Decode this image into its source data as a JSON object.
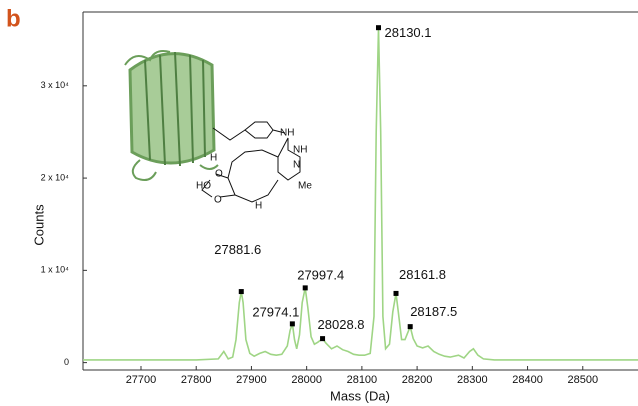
{
  "chart_data": {
    "type": "line",
    "panel_label": "b",
    "xlabel": "Mass (Da)",
    "ylabel": "Counts",
    "xlim": [
      27595,
      28600
    ],
    "ylim": [
      -800,
      38000
    ],
    "xticks": [
      27700,
      27800,
      27900,
      28000,
      28100,
      28200,
      28300,
      28400,
      28500
    ],
    "yticks": [
      0,
      {
        "value": 10000,
        "label": "1 x 10⁴"
      },
      {
        "value": 20000,
        "label": "2 x 10⁴"
      },
      {
        "value": 30000,
        "label": "3 x 10⁴"
      }
    ],
    "color": "#9fd585",
    "x": [
      27595,
      27700,
      27800,
      27840,
      27850,
      27858,
      27866,
      27872,
      27878,
      27881.6,
      27885,
      27890,
      27897,
      27905,
      27915,
      27925,
      27935,
      27945,
      27955,
      27965,
      27970,
      27974.1,
      27978,
      27982,
      27987,
      27992,
      27997.4,
      28002,
      28008,
      28014,
      28020,
      28028.8,
      28035,
      28045,
      28055,
      28065,
      28075,
      28085,
      28095,
      28105,
      28115,
      28122,
      28126,
      28130.1,
      28134,
      28138,
      28143,
      28150,
      28156,
      28161.8,
      28166,
      28172,
      28178,
      28187.5,
      28193,
      28200,
      28210,
      28220,
      28230,
      28240,
      28250,
      28260,
      28275,
      28285,
      28295,
      28302,
      28310,
      28320,
      28340,
      28400,
      28500,
      28600
    ],
    "values": [
      300,
      300,
      300,
      400,
      1200,
      400,
      600,
      2500,
      6500,
      7700,
      6500,
      2500,
      1000,
      700,
      1000,
      1200,
      900,
      800,
      900,
      1800,
      3500,
      4200,
      2500,
      1500,
      3000,
      6500,
      8100,
      6000,
      2800,
      2000,
      2200,
      2600,
      2100,
      1500,
      1800,
      1400,
      1200,
      900,
      800,
      800,
      1000,
      5000,
      25000,
      36300,
      25000,
      5000,
      1500,
      2000,
      5500,
      7500,
      5500,
      2500,
      2500,
      3900,
      2600,
      1800,
      1600,
      1800,
      1200,
      900,
      700,
      600,
      800,
      500,
      1200,
      1500,
      800,
      400,
      300,
      300,
      300,
      300
    ],
    "peaks": {
      "x": [
        27881.6,
        27974.1,
        27997.4,
        28028.8,
        28130.1,
        28161.8,
        28187.5
      ],
      "y": [
        7700,
        4200,
        8100,
        2600,
        36300,
        7500,
        3900
      ]
    },
    "annotations": [
      "NH",
      "NH",
      "N",
      "Me",
      "H",
      "O",
      "HO",
      "O",
      "H"
    ]
  }
}
